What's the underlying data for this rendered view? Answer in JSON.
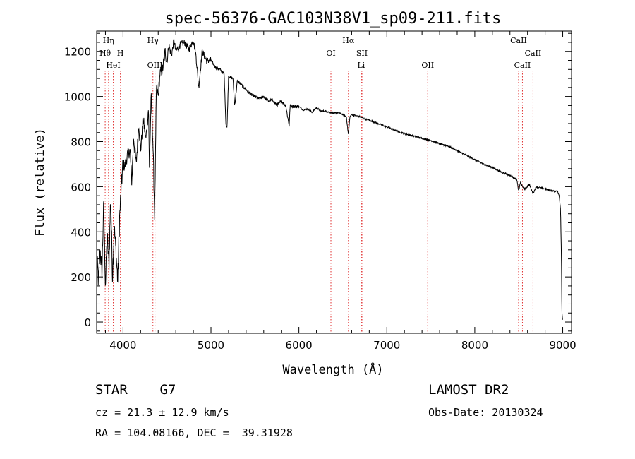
{
  "chart_data": {
    "type": "line",
    "title": "spec-56376-GAC103N38V1_sp09-211.fits",
    "xlabel": "Wavelength (Å)",
    "ylabel": "Flux (relative)",
    "xlim": [
      3700,
      9100
    ],
    "ylim": [
      -50,
      1290
    ],
    "xticks": [
      4000,
      5000,
      6000,
      7000,
      8000,
      9000
    ],
    "yticks": [
      0,
      200,
      400,
      600,
      800,
      1000,
      1200
    ],
    "series": [
      {
        "name": "flux",
        "x": [
          3700,
          3720,
          3740,
          3760,
          3780,
          3800,
          3820,
          3840,
          3860,
          3880,
          3900,
          3920,
          3940,
          3960,
          3980,
          4000,
          4020,
          4050,
          4080,
          4100,
          4120,
          4150,
          4180,
          4200,
          4230,
          4260,
          4290,
          4300,
          4320,
          4340,
          4360,
          4380,
          4400,
          4420,
          4450,
          4480,
          4500,
          4520,
          4550,
          4580,
          4600,
          4650,
          4700,
          4750,
          4800,
          4830,
          4861,
          4900,
          4950,
          5000,
          5050,
          5100,
          5150,
          5170,
          5183,
          5200,
          5250,
          5270,
          5300,
          5350,
          5400,
          5450,
          5500,
          5550,
          5600,
          5650,
          5700,
          5750,
          5800,
          5850,
          5890,
          5900,
          5950,
          6000,
          6050,
          6100,
          6150,
          6200,
          6250,
          6300,
          6350,
          6400,
          6450,
          6500,
          6540,
          6563,
          6580,
          6600,
          6650,
          6700,
          6750,
          6800,
          6900,
          7000,
          7100,
          7200,
          7300,
          7400,
          7500,
          7600,
          7700,
          7800,
          7900,
          8000,
          8100,
          8200,
          8300,
          8400,
          8480,
          8498,
          8520,
          8542,
          8570,
          8620,
          8662,
          8700,
          8750,
          8800,
          8850,
          8900,
          8940,
          8960,
          8975,
          8985,
          8990,
          9000
        ],
        "y": [
          300,
          180,
          320,
          220,
          520,
          160,
          380,
          250,
          560,
          200,
          420,
          310,
          180,
          450,
          600,
          700,
          690,
          740,
          760,
          620,
          820,
          700,
          880,
          760,
          900,
          810,
          950,
          680,
          1000,
          800,
          470,
          1050,
          1000,
          1100,
          1120,
          1200,
          1150,
          1230,
          1180,
          1250,
          1200,
          1230,
          1240,
          1210,
          1250,
          1180,
          1040,
          1200,
          1160,
          1160,
          1130,
          1120,
          1100,
          880,
          860,
          1090,
          1080,
          960,
          1070,
          1050,
          1030,
          1010,
          1000,
          990,
          1000,
          980,
          985,
          960,
          980,
          960,
          870,
          960,
          955,
          955,
          940,
          945,
          930,
          950,
          935,
          935,
          930,
          925,
          930,
          920,
          910,
          830,
          910,
          920,
          915,
          910,
          900,
          895,
          880,
          865,
          850,
          835,
          825,
          815,
          805,
          790,
          780,
          760,
          740,
          720,
          700,
          685,
          665,
          650,
          630,
          580,
          620,
          600,
          590,
          610,
          570,
          600,
          595,
          590,
          585,
          580,
          580,
          560,
          500,
          300,
          50,
          0
        ]
      }
    ],
    "line_annotations": [
      {
        "name": "Hη",
        "x": 3835,
        "row": 0
      },
      {
        "name": "Hθ",
        "x": 3797,
        "row": 1
      },
      {
        "name": "H",
        "x": 3970,
        "row": 1
      },
      {
        "name": "HeI",
        "x": 3889,
        "row": 2
      },
      {
        "name": "Hγ",
        "x": 4340,
        "row": 0
      },
      {
        "name": "OIII",
        "x": 4363,
        "row": 2
      },
      {
        "name": "Hα",
        "x": 6563,
        "row": 0
      },
      {
        "name": "OI",
        "x": 6364,
        "row": 1
      },
      {
        "name": "SII",
        "x": 6717,
        "row": 1
      },
      {
        "name": "Li",
        "x": 6708,
        "row": 2
      },
      {
        "name": "OII",
        "x": 7465,
        "row": 2
      },
      {
        "name": "CaII",
        "x": 8498,
        "row": 0
      },
      {
        "name": "CaII",
        "x": 8662,
        "row": 1
      },
      {
        "name": "CaII",
        "x": 8542,
        "row": 2
      }
    ]
  },
  "info": {
    "object": "STAR    G7",
    "survey": "LAMOST DR2",
    "redshift": "cz = 21.3 ± 12.9 km/s",
    "obs_date": "Obs-Date: 20130324",
    "coords": "RA = 104.08166, DEC =  39.31928"
  },
  "colors": {
    "axis": "#000000",
    "line": "#000000",
    "marker": "#e03030"
  }
}
